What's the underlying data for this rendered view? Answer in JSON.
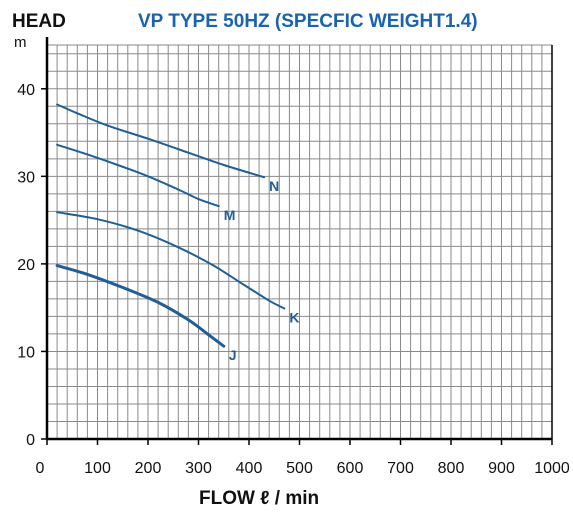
{
  "chart_data": {
    "type": "line",
    "title": "VP TYPE 50HZ (SPECFIC WEIGHT1.4)",
    "ylabel": "HEAD",
    "yunit": "m",
    "xlabel": "FLOW ℓ / min",
    "xlim": [
      0,
      1000
    ],
    "ylim": [
      0,
      45
    ],
    "x_ticks": [
      0,
      100,
      200,
      300,
      400,
      500,
      600,
      700,
      800,
      900,
      1000
    ],
    "y_ticks": [
      0,
      10,
      20,
      30,
      40
    ],
    "grid": true,
    "x_minor_step": 20,
    "y_minor_step": 2,
    "series": [
      {
        "name": "N",
        "points": [
          [
            20,
            38.2
          ],
          [
            60,
            37.2
          ],
          [
            120,
            35.8
          ],
          [
            200,
            34.3
          ],
          [
            280,
            32.7
          ],
          [
            350,
            31.3
          ],
          [
            430,
            29.9
          ]
        ]
      },
      {
        "name": "M",
        "points": [
          [
            20,
            33.6
          ],
          [
            80,
            32.5
          ],
          [
            140,
            31.3
          ],
          [
            200,
            30.0
          ],
          [
            260,
            28.5
          ],
          [
            300,
            27.4
          ],
          [
            340,
            26.6
          ]
        ]
      },
      {
        "name": "K",
        "points": [
          [
            20,
            25.9
          ],
          [
            100,
            25.1
          ],
          [
            180,
            23.8
          ],
          [
            260,
            21.9
          ],
          [
            330,
            19.8
          ],
          [
            390,
            17.6
          ],
          [
            440,
            15.8
          ],
          [
            470,
            14.9
          ]
        ]
      },
      {
        "name": "J",
        "points": [
          [
            20,
            19.8
          ],
          [
            80,
            18.8
          ],
          [
            150,
            17.3
          ],
          [
            220,
            15.6
          ],
          [
            280,
            13.6
          ],
          [
            320,
            11.9
          ],
          [
            350,
            10.6
          ]
        ]
      }
    ],
    "colors": {
      "series": "#1f5f96",
      "grid": "#8a8a8a",
      "axis": "#000000",
      "title": "#1a63b0",
      "label": "#111111"
    }
  }
}
